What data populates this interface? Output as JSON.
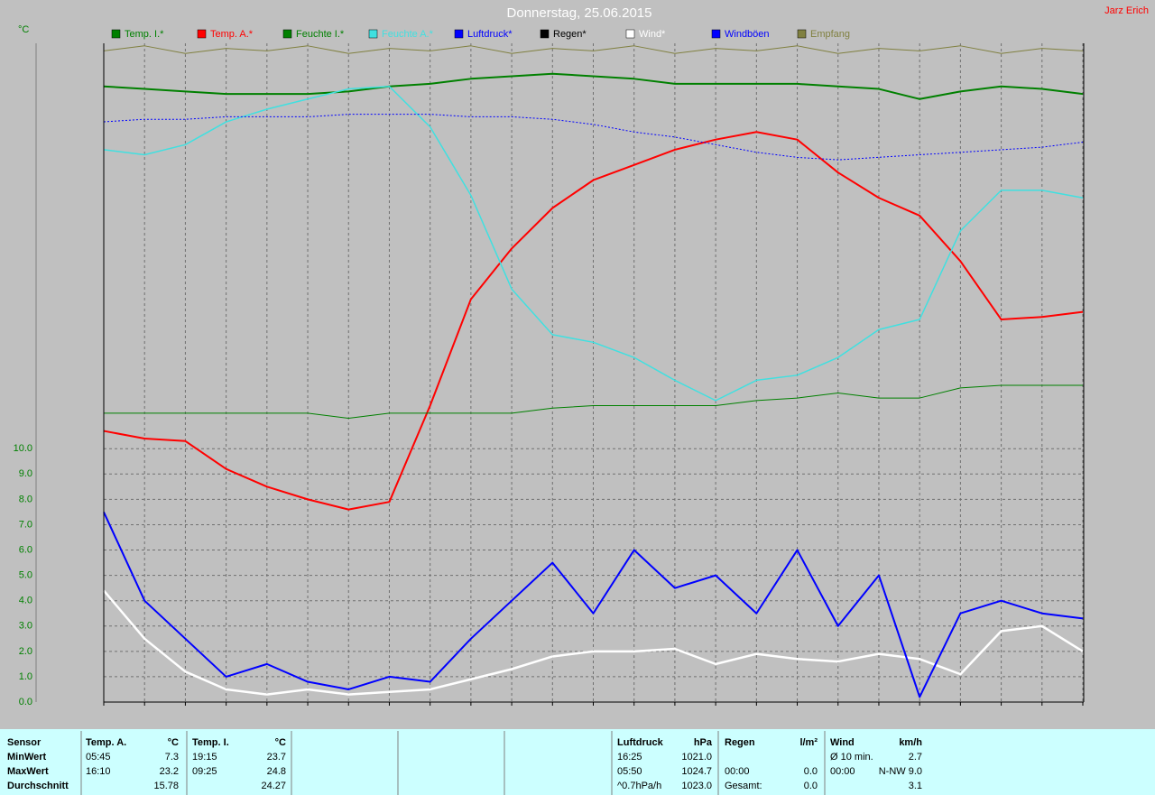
{
  "header": {
    "author": "Jarz Erich"
  },
  "chart_data": {
    "type": "line",
    "title": "Donnerstag, 25.06.2015",
    "y_label": "°C",
    "x": [
      0,
      1,
      2,
      3,
      4,
      5,
      6,
      7,
      8,
      9,
      10,
      11,
      12,
      13,
      14,
      15,
      16,
      17,
      18,
      19,
      20,
      21,
      22,
      23,
      24
    ],
    "xlim": [
      0,
      24
    ],
    "xticks": [
      0,
      1,
      2,
      3,
      4,
      5,
      6,
      7,
      8,
      9,
      10,
      11,
      12,
      13,
      14,
      15,
      16,
      17,
      18,
      19,
      20,
      21,
      22,
      23,
      24
    ],
    "ylim": [
      0,
      26
    ],
    "yticks": [
      {
        "value": 0,
        "label": "0.0"
      },
      {
        "value": 1,
        "label": "1.0"
      },
      {
        "value": 2,
        "label": "2.0"
      },
      {
        "value": 3,
        "label": "3.0"
      },
      {
        "value": 4,
        "label": "4.0"
      },
      {
        "value": 5,
        "label": "5.0"
      },
      {
        "value": 6,
        "label": "6.0"
      },
      {
        "value": 7,
        "label": "7.0"
      },
      {
        "value": 8,
        "label": "8.0"
      },
      {
        "value": 9,
        "label": "9.0"
      },
      {
        "value": 10,
        "label": "10.0"
      }
    ],
    "grid": true,
    "series": [
      {
        "name": "Temp. I.*",
        "color": "#008000",
        "line_width": 2,
        "values": [
          24.3,
          24.2,
          24.1,
          24.0,
          24.0,
          24.0,
          24.1,
          24.3,
          24.4,
          24.6,
          24.7,
          24.8,
          24.7,
          24.6,
          24.4,
          24.4,
          24.4,
          24.4,
          24.3,
          24.2,
          23.8,
          24.1,
          24.3,
          24.2,
          24.0
        ]
      },
      {
        "name": "Temp. A.*",
        "color": "#ff0000",
        "line_width": 2,
        "values": [
          10.7,
          10.4,
          10.3,
          9.2,
          8.5,
          8.0,
          7.6,
          7.9,
          11.7,
          15.9,
          17.9,
          19.5,
          20.6,
          21.2,
          21.8,
          22.2,
          22.5,
          22.2,
          20.9,
          19.9,
          19.2,
          17.4,
          15.1,
          15.2,
          15.4
        ]
      },
      {
        "name": "Feuchte I.*",
        "color": "#008000",
        "line_width": 1,
        "values": [
          11.4,
          11.4,
          11.4,
          11.4,
          11.4,
          11.4,
          11.2,
          11.4,
          11.4,
          11.4,
          11.4,
          11.6,
          11.7,
          11.7,
          11.7,
          11.7,
          11.9,
          12.0,
          12.2,
          12.0,
          12.0,
          12.4,
          12.5,
          12.5,
          12.5
        ]
      },
      {
        "name": "Feuchte A.*",
        "color": "#40e0e0",
        "line_width": 1.5,
        "values": [
          21.8,
          21.6,
          22.0,
          22.9,
          23.4,
          23.8,
          24.2,
          24.3,
          22.7,
          20.0,
          16.3,
          14.5,
          14.2,
          13.6,
          12.7,
          11.9,
          12.7,
          12.9,
          13.6,
          14.7,
          15.1,
          18.6,
          20.2,
          20.2,
          19.9
        ]
      },
      {
        "name": "Luftdruck*",
        "color": "#0000ff",
        "line_width": 1,
        "style": "dotted",
        "values": [
          22.9,
          23.0,
          23.0,
          23.1,
          23.1,
          23.1,
          23.2,
          23.2,
          23.2,
          23.1,
          23.1,
          23.0,
          22.8,
          22.5,
          22.3,
          22.0,
          21.7,
          21.5,
          21.4,
          21.5,
          21.6,
          21.7,
          21.8,
          21.9,
          22.1
        ]
      },
      {
        "name": "Regen*",
        "color": "#000000",
        "line_width": 1,
        "values": [
          0,
          0,
          0,
          0,
          0,
          0,
          0,
          0,
          0,
          0,
          0,
          0,
          0,
          0,
          0,
          0,
          0,
          0,
          0,
          0,
          0,
          0,
          0,
          0,
          0
        ]
      },
      {
        "name": "Wind*",
        "color": "#ffffff",
        "line_width": 2.5,
        "values": [
          4.4,
          2.5,
          1.2,
          0.5,
          0.3,
          0.5,
          0.3,
          0.4,
          0.5,
          0.9,
          1.3,
          1.8,
          2.0,
          2.0,
          2.1,
          1.5,
          1.9,
          1.7,
          1.6,
          1.9,
          1.7,
          1.1,
          2.8,
          3.0,
          2.0
        ]
      },
      {
        "name": "Windböen",
        "color": "#0000ff",
        "line_width": 2,
        "values": [
          7.5,
          4.0,
          2.5,
          1.0,
          1.5,
          0.8,
          0.5,
          1.0,
          0.8,
          2.5,
          4.0,
          5.5,
          3.5,
          6.0,
          4.5,
          5.0,
          3.5,
          6.0,
          3.0,
          5.0,
          0.2,
          3.5,
          4.0,
          3.5,
          3.3
        ]
      },
      {
        "name": "Empfang",
        "color": "#808040",
        "line_width": 1,
        "values": [
          25.7,
          25.9,
          25.6,
          25.8,
          25.7,
          25.9,
          25.6,
          25.8,
          25.7,
          25.9,
          25.6,
          25.8,
          25.7,
          25.9,
          25.6,
          25.8,
          25.7,
          25.9,
          25.6,
          25.8,
          25.7,
          25.9,
          25.6,
          25.8,
          25.7
        ]
      }
    ]
  },
  "table": {
    "rows": [
      [
        "Sensor",
        "Temp. A.",
        "°C",
        "Temp. I.",
        "°C",
        "Luftdruck",
        "hPa",
        "Regen",
        "l/m²",
        "Wind",
        "km/h"
      ],
      [
        "MinWert",
        "05:45",
        "7.3",
        "19:15",
        "23.7",
        "16:25",
        "1021.0",
        null,
        null,
        "Ø 10 min.",
        "2.7"
      ],
      [
        "MaxWert",
        "16:10",
        "23.2",
        "09:25",
        "24.8",
        "05:50",
        "1024.7",
        "00:00",
        "0.0",
        "00:00",
        "N-NW 9.0"
      ],
      [
        "Durchschnitt",
        null,
        "15.78",
        null,
        "24.27",
        "^0.7hPa/h",
        "1023.0",
        "Gesamt:",
        "0.0",
        null,
        "3.1"
      ]
    ]
  }
}
